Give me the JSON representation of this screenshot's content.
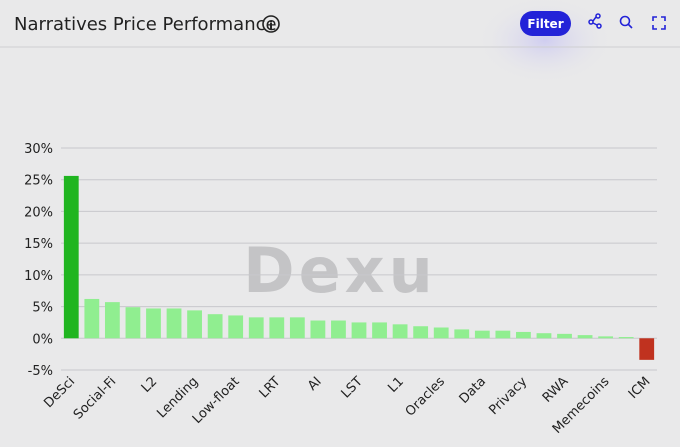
{
  "header": {
    "title": "Narratives Price Performance",
    "filter_button": "Filter"
  },
  "watermark": "Dexu",
  "chart_data": {
    "type": "bar",
    "categories": [
      "DeSci",
      null,
      "Social-Fi",
      null,
      "L2",
      null,
      "Lending",
      null,
      "Low-float",
      null,
      "LRT",
      null,
      "AI",
      null,
      "LST",
      null,
      "L1",
      null,
      "Oracles",
      null,
      "Data",
      null,
      "Privacy",
      null,
      "RWA",
      null,
      "Memecoins",
      null,
      "ICM"
    ],
    "values": [
      25.6,
      6.2,
      5.7,
      4.9,
      4.7,
      4.7,
      4.4,
      3.8,
      3.6,
      3.3,
      3.3,
      3.3,
      2.8,
      2.8,
      2.5,
      2.5,
      2.2,
      1.9,
      1.7,
      1.4,
      1.2,
      1.2,
      1.0,
      0.8,
      0.7,
      0.5,
      0.3,
      0.2,
      -3.4
    ],
    "colors": [
      "#20b520",
      "#90ee90",
      "#90ee90",
      "#90ee90",
      "#90ee90",
      "#90ee90",
      "#90ee90",
      "#90ee90",
      "#90ee90",
      "#90ee90",
      "#90ee90",
      "#90ee90",
      "#90ee90",
      "#90ee90",
      "#90ee90",
      "#90ee90",
      "#90ee90",
      "#90ee90",
      "#90ee90",
      "#90ee90",
      "#90ee90",
      "#90ee90",
      "#90ee90",
      "#90ee90",
      "#90ee90",
      "#90ee90",
      "#90ee90",
      "#90ee90",
      "#c0321f"
    ],
    "ylim": [
      -5,
      30
    ],
    "yticks": [
      {
        "value": -5,
        "label": "-5%"
      },
      {
        "value": 0,
        "label": "0%"
      },
      {
        "value": 5,
        "label": "5%"
      },
      {
        "value": 10,
        "label": "10%"
      },
      {
        "value": 15,
        "label": "15%"
      },
      {
        "value": 20,
        "label": "20%"
      },
      {
        "value": 25,
        "label": "25%"
      },
      {
        "value": 30,
        "label": "30%"
      }
    ],
    "grid": true
  }
}
